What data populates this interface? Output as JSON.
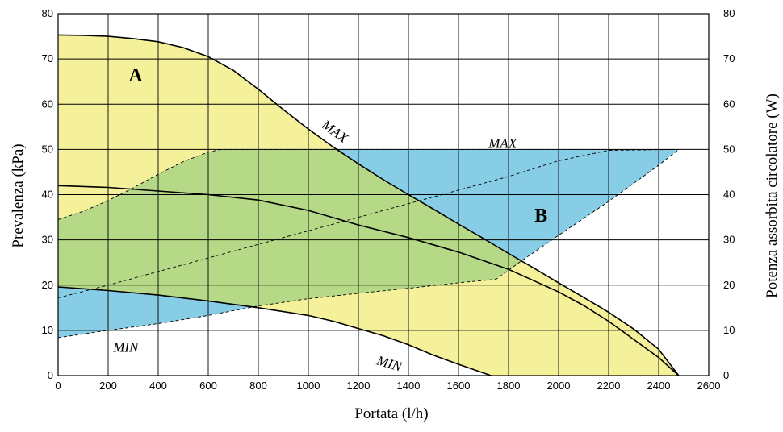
{
  "chart_data": {
    "type": "line",
    "title": "",
    "xlabel": "Portata (l/h)",
    "ylabel_left": "Prevalenza (kPa)",
    "ylabel_right": "Potenza assorbita circolatore (W)",
    "xlim": [
      0,
      2600
    ],
    "ylim_left": [
      0,
      80
    ],
    "ylim_right": [
      0,
      80
    ],
    "x_ticks": [
      "0",
      "200",
      "400",
      "600",
      "800",
      "1000",
      "1200",
      "1400",
      "1600",
      "1800",
      "2000",
      "2200",
      "2400",
      "2600"
    ],
    "y_ticks_left": [
      "0",
      "10",
      "20",
      "30",
      "40",
      "50",
      "60",
      "70",
      "80"
    ],
    "y_ticks_right": [
      "0",
      "10",
      "20",
      "30",
      "40",
      "50",
      "60",
      "70",
      "80"
    ],
    "grid": true,
    "colors": {
      "region_a": "#f5f19a",
      "region_b": "#88cde6",
      "overlap": "#b6d987",
      "line": "#000000",
      "grid": "#000000"
    },
    "regions": [
      {
        "label": "A",
        "label_at": [
          310,
          65
        ]
      },
      {
        "label": "B",
        "label_at": [
          1930,
          34
        ]
      }
    ],
    "series": [
      {
        "name": "MAX",
        "axis": "left",
        "style": "solid",
        "label_at": [
          1050,
          55
        ],
        "points": [
          [
            0,
            75.3
          ],
          [
            100,
            75.2
          ],
          [
            200,
            75.0
          ],
          [
            300,
            74.5
          ],
          [
            400,
            73.8
          ],
          [
            500,
            72.5
          ],
          [
            600,
            70.5
          ],
          [
            700,
            67.5
          ],
          [
            800,
            63.3
          ],
          [
            900,
            58.8
          ],
          [
            1000,
            54.5
          ],
          [
            1100,
            50.5
          ],
          [
            1200,
            46.8
          ],
          [
            1300,
            43.3
          ],
          [
            1400,
            40.0
          ],
          [
            1500,
            36.8
          ],
          [
            1600,
            33.5
          ],
          [
            1700,
            30.3
          ],
          [
            1800,
            27.0
          ],
          [
            1900,
            23.8
          ],
          [
            2000,
            20.5
          ],
          [
            2100,
            17.3
          ],
          [
            2200,
            14.0
          ],
          [
            2300,
            10.3
          ],
          [
            2400,
            5.8
          ],
          [
            2480,
            0
          ]
        ]
      },
      {
        "name": "",
        "axis": "left",
        "style": "solid",
        "points": [
          [
            0,
            42.0
          ],
          [
            200,
            41.6
          ],
          [
            400,
            40.8
          ],
          [
            600,
            40.0
          ],
          [
            800,
            38.8
          ],
          [
            1000,
            36.5
          ],
          [
            1200,
            33.3
          ],
          [
            1400,
            30.5
          ],
          [
            1600,
            27.3
          ],
          [
            1800,
            23.5
          ],
          [
            2000,
            18.5
          ],
          [
            2100,
            15.5
          ],
          [
            2200,
            12.0
          ],
          [
            2300,
            8.0
          ],
          [
            2400,
            4.0
          ],
          [
            2480,
            0
          ]
        ]
      },
      {
        "name": "MIN",
        "axis": "left",
        "style": "solid",
        "label_at": [
          1270,
          2.5
        ],
        "points": [
          [
            0,
            19.6
          ],
          [
            200,
            18.8
          ],
          [
            400,
            17.8
          ],
          [
            600,
            16.5
          ],
          [
            800,
            15.0
          ],
          [
            1000,
            13.3
          ],
          [
            1100,
            12.0
          ],
          [
            1200,
            10.4
          ],
          [
            1300,
            8.8
          ],
          [
            1400,
            6.8
          ],
          [
            1500,
            4.5
          ],
          [
            1600,
            2.5
          ],
          [
            1730,
            0
          ]
        ]
      },
      {
        "name": "MAX",
        "axis": "right",
        "style": "dashed",
        "label_at": [
          1720,
          50.3
        ],
        "points": [
          [
            0,
            34.5
          ],
          [
            100,
            36.3
          ],
          [
            200,
            38.7
          ],
          [
            300,
            41.5
          ],
          [
            400,
            44.5
          ],
          [
            500,
            47.3
          ],
          [
            600,
            49.4
          ],
          [
            650,
            50.0
          ],
          [
            1100,
            50.0
          ],
          [
            2480,
            50.0
          ]
        ]
      },
      {
        "name": "",
        "axis": "right",
        "style": "dashed",
        "points": [
          [
            0,
            17.2
          ],
          [
            200,
            20.0
          ],
          [
            400,
            23.0
          ],
          [
            600,
            26.0
          ],
          [
            800,
            29.0
          ],
          [
            1000,
            32.0
          ],
          [
            1200,
            35.0
          ],
          [
            1400,
            38.0
          ],
          [
            1600,
            41.0
          ],
          [
            1800,
            44.0
          ],
          [
            2000,
            47.5
          ],
          [
            2200,
            49.8
          ],
          [
            2480,
            50.0
          ]
        ]
      },
      {
        "name": "MIN",
        "axis": "right",
        "style": "dashed",
        "label_at": [
          220,
          5.3
        ],
        "points": [
          [
            0,
            8.4
          ],
          [
            200,
            10.0
          ],
          [
            400,
            11.5
          ],
          [
            600,
            13.3
          ],
          [
            800,
            15.4
          ],
          [
            1000,
            17.0
          ],
          [
            1200,
            18.2
          ],
          [
            1400,
            19.3
          ],
          [
            1600,
            20.5
          ],
          [
            1750,
            21.3
          ],
          [
            1850,
            25.3
          ],
          [
            2000,
            31.0
          ],
          [
            2200,
            38.5
          ],
          [
            2400,
            46.5
          ],
          [
            2480,
            50.0
          ]
        ]
      }
    ]
  }
}
